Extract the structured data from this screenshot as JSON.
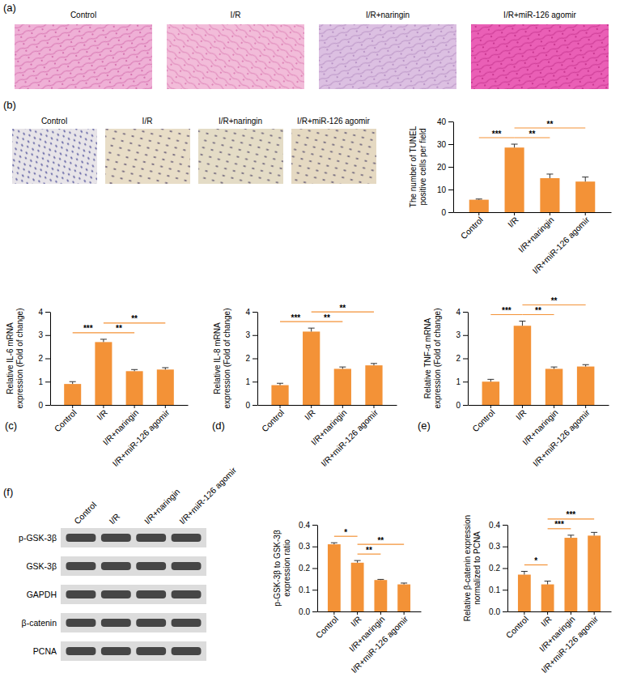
{
  "panel_a": {
    "label": "(a)",
    "titles": [
      "Control",
      "I/R",
      "I/R+naringin",
      "I/R+miR-126 agomir"
    ]
  },
  "panel_b": {
    "label": "(b)",
    "titles": [
      "Control",
      "I/R",
      "I/R+naringin",
      "I/R+miR-126 agomir"
    ]
  },
  "blot": {
    "label": "(f)",
    "lanes": [
      "Control",
      "I/R",
      "I/R+naringin",
      "I/R+miR-126 agomir"
    ],
    "rows": [
      "p-GSK-3β",
      "GSK-3β",
      "GAPDH",
      "β-catenin",
      "PCNA"
    ]
  },
  "chart_data": [
    {
      "type": "bar",
      "categories": [
        "Control",
        "I/R",
        "I/R+naringin",
        "I/R+miR-126 agomir"
      ],
      "values": [
        5.5,
        28.5,
        15,
        13.5
      ],
      "errors": [
        0.3,
        1.5,
        1.8,
        2.0
      ],
      "color": "#f39237",
      "ylabel": [
        "The number of TUNEL",
        "positive cells per field"
      ],
      "ylim": [
        0,
        40
      ],
      "yticks": [
        0,
        10,
        20,
        30,
        40
      ],
      "annotations": [
        {
          "between": [
            "Control",
            "I/R"
          ],
          "text": "***"
        },
        {
          "between": [
            "I/R",
            "I/R+naringin"
          ],
          "text": "**"
        },
        {
          "between": [
            "I/R",
            "I/R+miR-126 agomir"
          ],
          "text": "**"
        }
      ]
    },
    {
      "type": "bar",
      "title": "(c)",
      "categories": [
        "Control",
        "I/R",
        "I/R+naringin",
        "I/R+miR-126 agomir"
      ],
      "values": [
        0.9,
        2.7,
        1.45,
        1.52
      ],
      "errors": [
        0.1,
        0.12,
        0.07,
        0.08
      ],
      "color": "#f39237",
      "ylabel": [
        "Relative IL-6 mRNA",
        "expression (Fold of change)"
      ],
      "ylim": [
        0,
        4
      ],
      "yticks": [
        0,
        1,
        2,
        3,
        4
      ],
      "annotations": [
        {
          "between": [
            "Control",
            "I/R"
          ],
          "text": "***"
        },
        {
          "between": [
            "I/R",
            "I/R+naringin"
          ],
          "text": "**"
        },
        {
          "between": [
            "I/R",
            "I/R+miR-126 agomir"
          ],
          "text": "**"
        }
      ]
    },
    {
      "type": "bar",
      "title": "(d)",
      "categories": [
        "Control",
        "I/R",
        "I/R+naringin",
        "I/R+miR-126 agomir"
      ],
      "values": [
        0.85,
        3.15,
        1.55,
        1.7
      ],
      "errors": [
        0.08,
        0.15,
        0.08,
        0.08
      ],
      "color": "#f39237",
      "ylabel": [
        "Relative IL-8 mRNA",
        "expression (Fold of change)"
      ],
      "ylim": [
        0,
        4
      ],
      "yticks": [
        0,
        1,
        2,
        3,
        4
      ],
      "annotations": [
        {
          "between": [
            "Control",
            "I/R"
          ],
          "text": "***"
        },
        {
          "between": [
            "I/R",
            "I/R+naringin"
          ],
          "text": "**"
        },
        {
          "between": [
            "I/R",
            "I/R+miR-126 agomir"
          ],
          "text": "**"
        }
      ]
    },
    {
      "type": "bar",
      "title": "(e)",
      "categories": [
        "Control",
        "I/R",
        "I/R+naringin",
        "I/R+miR-126 agomir"
      ],
      "values": [
        1.0,
        3.4,
        1.55,
        1.65
      ],
      "errors": [
        0.1,
        0.2,
        0.08,
        0.08
      ],
      "color": "#f39237",
      "ylabel": [
        "Relative TNF-α mRNA",
        "expression (Fold of change)"
      ],
      "ylim": [
        0,
        4
      ],
      "yticks": [
        0,
        1,
        2,
        3,
        4
      ],
      "annotations": [
        {
          "between": [
            "Control",
            "I/R"
          ],
          "text": "***"
        },
        {
          "between": [
            "I/R",
            "I/R+naringin"
          ],
          "text": "**"
        },
        {
          "between": [
            "I/R",
            "I/R+miR-126 agomir"
          ],
          "text": "**"
        }
      ]
    },
    {
      "type": "bar",
      "categories": [
        "Control",
        "I/R",
        "I/R+naringin",
        "I/R+miR-126 agomir"
      ],
      "values": [
        0.31,
        0.225,
        0.145,
        0.125
      ],
      "errors": [
        0.007,
        0.01,
        0.003,
        0.006
      ],
      "color": "#f39237",
      "ylabel": [
        "p-GSK-3β to GSK-3β",
        "expression ratio"
      ],
      "ylim": [
        0,
        0.4
      ],
      "yticks": [
        {
          "value": 0,
          "label": "0.0"
        },
        0.1,
        0.2,
        0.3,
        0.4
      ],
      "annotations": [
        {
          "between": [
            "Control",
            "I/R"
          ],
          "text": "*"
        },
        {
          "between": [
            "I/R",
            "I/R+naringin"
          ],
          "text": "**"
        },
        {
          "between": [
            "I/R",
            "I/R+miR-126 agomir"
          ],
          "text": "**"
        }
      ]
    },
    {
      "type": "bar",
      "categories": [
        "Control",
        "I/R",
        "I/R+naringin",
        "I/R+miR-126 agomir"
      ],
      "values": [
        0.17,
        0.125,
        0.34,
        0.35
      ],
      "errors": [
        0.015,
        0.015,
        0.012,
        0.015
      ],
      "color": "#f39237",
      "ylabel": [
        "Relative β-catenin expression",
        "normalized to PCNA"
      ],
      "ylim": [
        0,
        0.4
      ],
      "yticks": [
        {
          "value": 0,
          "label": "0.0"
        },
        0.1,
        0.2,
        0.3,
        0.4
      ],
      "annotations": [
        {
          "between": [
            "Control",
            "I/R"
          ],
          "text": "*"
        },
        {
          "between": [
            "I/R",
            "I/R+naringin"
          ],
          "text": "***"
        },
        {
          "between": [
            "I/R",
            "I/R+miR-126 agomir"
          ],
          "text": "***"
        }
      ]
    }
  ]
}
